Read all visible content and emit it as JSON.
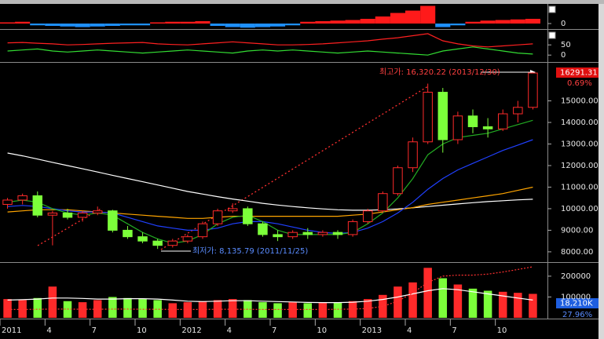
{
  "chart_data": [
    {
      "type": "bar",
      "values": [
        2,
        3,
        -3,
        -4,
        -5,
        -6,
        -5,
        -4,
        -3,
        -3,
        2,
        3,
        3,
        4,
        -4,
        -6,
        -7,
        -6,
        -5,
        -3,
        3,
        4,
        5,
        6,
        8,
        12,
        18,
        22,
        30,
        -6,
        -3,
        3,
        5,
        6,
        7,
        8
      ],
      "positive_color": "#ff1a1a",
      "negative_color": "#1e90ff",
      "ylim": [
        -8,
        32
      ],
      "yticks": [
        0
      ]
    },
    {
      "type": "line",
      "series": [
        {
          "color": "#ff2020",
          "values": [
            60,
            62,
            58,
            55,
            50,
            52,
            55,
            58,
            60,
            62,
            55,
            52,
            50,
            55,
            60,
            65,
            60,
            55,
            50,
            50,
            52,
            55,
            60,
            65,
            70,
            78,
            85,
            95,
            105,
            70,
            55,
            45,
            40,
            45,
            50,
            55
          ]
        },
        {
          "color": "#33dd33",
          "values": [
            20,
            25,
            30,
            20,
            15,
            20,
            25,
            20,
            15,
            10,
            15,
            20,
            25,
            20,
            15,
            10,
            20,
            25,
            20,
            25,
            20,
            15,
            10,
            15,
            20,
            15,
            10,
            5,
            0,
            20,
            30,
            40,
            30,
            20,
            10,
            5
          ]
        }
      ],
      "ylim": [
        -30,
        120
      ],
      "yticks": [
        0,
        50
      ]
    },
    {
      "type": "candlestick",
      "categories": [
        "2011",
        null,
        null,
        "4",
        null,
        null,
        "7",
        null,
        null,
        "10",
        null,
        null,
        "2012",
        null,
        null,
        "4",
        null,
        null,
        "7",
        null,
        null,
        "10",
        null,
        null,
        "2013",
        null,
        null,
        "4",
        null,
        null,
        "7",
        null,
        null,
        "10",
        null,
        null
      ],
      "open": [
        10200,
        10400,
        10600,
        9700,
        9800,
        9600,
        9800,
        9900,
        9000,
        8700,
        8500,
        8300,
        8500,
        8700,
        9300,
        9900,
        10000,
        9300,
        8800,
        8700,
        8900,
        8800,
        8900,
        8800,
        9400,
        9900,
        10700,
        11900,
        13100,
        15400,
        13200,
        14300,
        13800,
        13700,
        14400,
        14700
      ],
      "high": [
        10500,
        10700,
        10800,
        9900,
        10000,
        9900,
        10100,
        9950,
        9200,
        8900,
        8600,
        8600,
        8800,
        9400,
        10000,
        10250,
        10100,
        9400,
        9000,
        9000,
        9100,
        9000,
        9000,
        9500,
        10000,
        10800,
        12000,
        13300,
        15800,
        15600,
        14500,
        14600,
        14200,
        14600,
        15000,
        16320.22
      ],
      "low": [
        10000,
        10200,
        9600,
        8300,
        9500,
        9400,
        9700,
        8900,
        8600,
        8400,
        8135.79,
        8200,
        8400,
        8600,
        9200,
        9800,
        9200,
        8700,
        8500,
        8600,
        8600,
        8700,
        8600,
        8700,
        9300,
        9800,
        10600,
        11700,
        13000,
        12600,
        13000,
        13500,
        13300,
        13600,
        14000,
        14600
      ],
      "close": [
        10400,
        10600,
        9700,
        9800,
        9600,
        9800,
        9900,
        9000,
        8700,
        8500,
        8300,
        8500,
        8700,
        9300,
        9900,
        10000,
        9300,
        8800,
        8700,
        8900,
        8800,
        8900,
        8800,
        9400,
        9900,
        10700,
        11900,
        13100,
        15400,
        13200,
        14300,
        13800,
        13700,
        14400,
        14700,
        16291.31
      ],
      "up_color": "#ff2a2a",
      "down_color": "#7cff3a",
      "series": [
        {
          "color": "#ffffff",
          "values": [
            12580,
            12450,
            12300,
            12150,
            12000,
            11850,
            11700,
            11550,
            11400,
            11250,
            11100,
            10950,
            10800,
            10680,
            10560,
            10450,
            10350,
            10250,
            10170,
            10100,
            10040,
            9990,
            9950,
            9930,
            9930,
            9950,
            9990,
            10040,
            10100,
            10160,
            10220,
            10280,
            10330,
            10370,
            10410,
            10440
          ]
        },
        {
          "color": "#ffa500",
          "values": [
            9850,
            9900,
            9950,
            9950,
            9950,
            9900,
            9850,
            9800,
            9750,
            9700,
            9650,
            9600,
            9550,
            9550,
            9600,
            9650,
            9650,
            9650,
            9650,
            9650,
            9650,
            9650,
            9650,
            9700,
            9750,
            9850,
            9950,
            10050,
            10200,
            10300,
            10400,
            10500,
            10600,
            10700,
            10850,
            11000
          ]
        },
        {
          "color": "#2040ff",
          "values": [
            10100,
            10150,
            10100,
            10000,
            9900,
            9850,
            9850,
            9800,
            9600,
            9400,
            9200,
            9100,
            9000,
            9000,
            9100,
            9300,
            9400,
            9400,
            9300,
            9150,
            9000,
            8900,
            8850,
            8900,
            9100,
            9400,
            9800,
            10300,
            10900,
            11400,
            11800,
            12100,
            12400,
            12700,
            12950,
            13200
          ]
        },
        {
          "color": "#22aa22",
          "values": [
            10300,
            10400,
            10300,
            10000,
            9800,
            9700,
            9800,
            9700,
            9300,
            8900,
            8600,
            8400,
            8500,
            8800,
            9300,
            9600,
            9700,
            9400,
            9000,
            8800,
            8800,
            8800,
            8800,
            8900,
            9300,
            9800,
            10500,
            11400,
            12500,
            13000,
            13300,
            13400,
            13500,
            13700,
            13900,
            14100
          ]
        }
      ],
      "ylim": [
        7560,
        16730
      ],
      "yticks": [
        {
          "value": 8000,
          "label": "8000.00"
        },
        {
          "value": 9000,
          "label": "9000.00"
        },
        {
          "value": 10000,
          "label": "10000.00"
        },
        {
          "value": 11000,
          "label": "11000.00"
        },
        {
          "value": 12000,
          "label": "12000.00"
        },
        {
          "value": 13000,
          "label": "13000.00"
        },
        {
          "value": 14000,
          "label": "14000.00"
        },
        {
          "value": 15000,
          "label": "15000.00"
        }
      ],
      "annotations": {
        "high": "최고가: 16,320.22 (2013/12/30)",
        "low": "최저가: 8,135.79 (2011/11/25)",
        "price_tag": "16291.31",
        "change": "0.69%"
      }
    },
    {
      "type": "bar",
      "values": [
        90000,
        85000,
        95000,
        150000,
        80000,
        75000,
        85000,
        100000,
        95000,
        90000,
        85000,
        70000,
        75000,
        80000,
        85000,
        90000,
        85000,
        75000,
        70000,
        75000,
        70000,
        72000,
        75000,
        80000,
        90000,
        110000,
        150000,
        170000,
        240000,
        190000,
        160000,
        140000,
        130000,
        125000,
        120000,
        115000
      ],
      "up_color": "#ff2a2a",
      "down_color": "#7cff3a",
      "series": [
        {
          "color": "#ffffff",
          "values": [
            85000,
            87000,
            90000,
            95000,
            95000,
            93000,
            90000,
            90000,
            92000,
            92000,
            90000,
            85000,
            80000,
            78000,
            80000,
            82000,
            82000,
            80000,
            78000,
            76000,
            74000,
            73000,
            73000,
            75000,
            80000,
            88000,
            100000,
            115000,
            130000,
            140000,
            135000,
            125000,
            115000,
            105000,
            95000,
            85000
          ]
        },
        {
          "color": "#ff3030",
          "style": "dotted",
          "values": [
            40000,
            40000,
            41000,
            42000,
            42000,
            41000,
            41000,
            42000,
            42000,
            41000,
            41000,
            40000,
            40000,
            40000,
            41000,
            41000,
            41000,
            40000,
            40000,
            40000,
            40000,
            40000,
            41000,
            42000,
            45000,
            55000,
            80000,
            120000,
            170000,
            200000,
            205000,
            205000,
            210000,
            220000,
            232000,
            245000
          ]
        }
      ],
      "ylim": [
        0,
        260000
      ],
      "yticks": [
        100000,
        200000
      ],
      "annotations": {
        "volume_tag": "18,210K",
        "ratio": "27.96%"
      }
    }
  ]
}
